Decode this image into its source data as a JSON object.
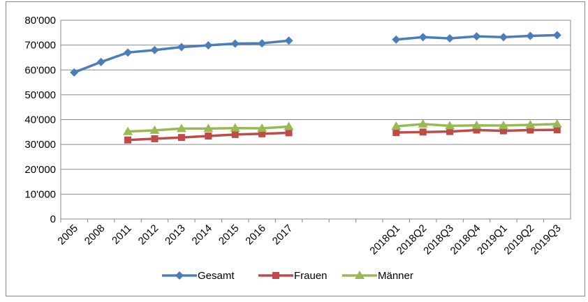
{
  "chart_data": {
    "type": "line",
    "categories": [
      "2005",
      "2008",
      "2011",
      "2012",
      "2013",
      "2014",
      "2015",
      "2016",
      "2017",
      null,
      null,
      null,
      "2018Q1",
      "2018Q2",
      "2018Q3",
      "2018Q4",
      "2019Q1",
      "2019Q2",
      "2019Q3"
    ],
    "series": [
      {
        "name": "Gesamt",
        "color": "#4a7ebb",
        "marker": "diamond",
        "values": [
          59000,
          63200,
          67000,
          68000,
          69200,
          69900,
          70600,
          70700,
          71800,
          null,
          null,
          null,
          72200,
          73200,
          72700,
          73500,
          73200,
          73700,
          74000
        ]
      },
      {
        "name": "Frauen",
        "color": "#be4b48",
        "marker": "square",
        "values": [
          null,
          null,
          31800,
          32300,
          32800,
          33400,
          34000,
          34300,
          34700,
          null,
          null,
          null,
          34800,
          35000,
          35200,
          35800,
          35500,
          35800,
          35900
        ]
      },
      {
        "name": "Männer",
        "color": "#98b954",
        "marker": "triangle",
        "values": [
          null,
          null,
          35200,
          35700,
          36400,
          36400,
          36600,
          36500,
          37200,
          null,
          null,
          null,
          37300,
          38200,
          37500,
          37700,
          37600,
          37900,
          38200
        ]
      }
    ],
    "ylim": [
      0,
      80000
    ],
    "yticks": [
      0,
      {
        "value": 10000,
        "label": "10'000"
      },
      {
        "value": 20000,
        "label": "20'000"
      },
      {
        "value": 30000,
        "label": "30'000"
      },
      {
        "value": 40000,
        "label": "40'000"
      },
      {
        "value": 50000,
        "label": "50'000"
      },
      {
        "value": 60000,
        "label": "60'000"
      },
      {
        "value": 70000,
        "label": "70'000"
      },
      {
        "value": 80000,
        "label": "80'000"
      }
    ],
    "grid": true,
    "legend": "bottom"
  }
}
